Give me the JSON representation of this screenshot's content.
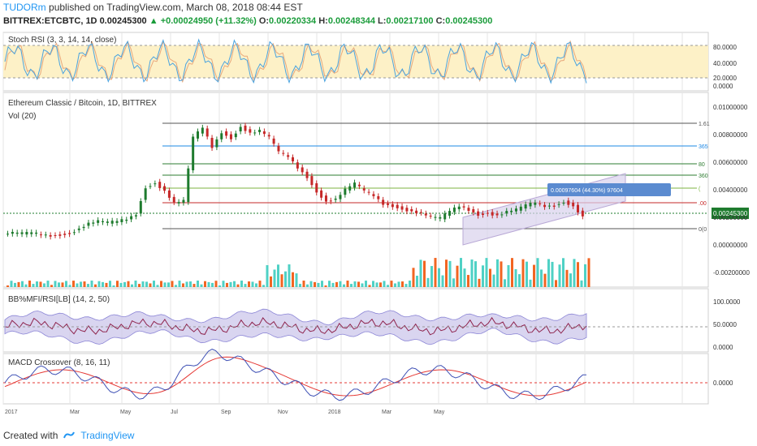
{
  "header": {
    "author": "TUDORm",
    "published_text": "published on TradingView.com, March 08, 2018 08:44 EST",
    "symbol": "BITTREX:ETCBTC, 1D",
    "last": "0.00245300",
    "change": "+0.00024950 (+11.32%)",
    "o_label": "O:",
    "o_val": "0.00220334",
    "h_label": "H:",
    "h_val": "0.00248344",
    "l_label": "L:",
    "l_val": "0.00217100",
    "c_label": "C:",
    "c_val": "0.00245300"
  },
  "footer": {
    "created": "Created with",
    "brand": "TradingView"
  },
  "colors": {
    "up": "#1e7b2e",
    "down": "#c62828",
    "grid": "#e6e6e6",
    "stoch_k": "#4aa3df",
    "stoch_d": "#e8a87c",
    "stoch_band": "#fdf1c7",
    "fib1": "#2e7d32",
    "fib2": "#1e88e5",
    "fib3": "#c62828",
    "channel": "#b9a9d6",
    "vol_up": "#4fd1c5",
    "vol_down": "#f26522",
    "bb_band": "#c9c3ea",
    "bb_line": "#8e244d",
    "macd": "#3f51b5",
    "signal": "#e53935"
  },
  "chart_data": [
    {
      "type": "line",
      "title": "Stoch RSI (3, 3, 14, 14, close)",
      "y_ticks": [
        "80.0000",
        "40.0000",
        "20.0000",
        "0.0000"
      ],
      "series": [],
      "ylim": [
        0,
        100
      ]
    },
    {
      "type": "candlestick",
      "title": "Ethereum Classic / Bitcoin, 1D, BITTREX",
      "subtitle": "Vol (20)",
      "y_ticks": [
        "0.01000000",
        "0.00800000",
        "0.00600000",
        "0.00400000",
        "0.00200000",
        "0.00000000",
        "-0.00200000"
      ],
      "current_price_label": "0.00245300",
      "fib_labels": [
        "1.61",
        "365",
        "80",
        "360",
        "(",
        ".00",
        "0(0"
      ],
      "annotation": "0.00097604 (44.30%) 97604",
      "ylim": [
        -0.0025,
        0.011
      ],
      "weekly_close": [
        0.0012,
        0.00115,
        0.0012,
        0.0011,
        0.0011,
        0.0012,
        0.0013,
        0.0016,
        0.0019,
        0.002,
        0.0019,
        0.002,
        0.0022,
        0.0026,
        0.0045,
        0.0048,
        0.0042,
        0.0033,
        0.0034,
        0.0078,
        0.0085,
        0.0072,
        0.0083,
        0.0079,
        0.0087,
        0.0082,
        0.0083,
        0.0078,
        0.0068,
        0.0065,
        0.0058,
        0.0052,
        0.0042,
        0.0035,
        0.0036,
        0.0042,
        0.0046,
        0.0041,
        0.0038,
        0.0033,
        0.0032,
        0.003,
        0.0028,
        0.0026,
        0.0023,
        0.0022,
        0.0027,
        0.0031,
        0.0029,
        0.0026,
        0.0027,
        0.0025,
        0.0027,
        0.0028,
        0.0031,
        0.0033,
        0.0031,
        0.0032,
        0.0035,
        0.0032,
        0.0024
      ]
    },
    {
      "type": "line",
      "title": "BB%MFI/RSI[LB] (14, 2, 50)",
      "y_ticks": [
        "100.0000",
        "50.0000",
        "0.0000"
      ],
      "ylim": [
        -5,
        120
      ]
    },
    {
      "type": "line",
      "title": "MACD Crossover (8, 16, 11)",
      "y_ticks": [
        "0.0000"
      ],
      "x_ticks": [
        "2017",
        "Mar",
        "May",
        "Jul",
        "Sep",
        "Nov",
        "2018",
        "Mar",
        "May"
      ]
    }
  ]
}
